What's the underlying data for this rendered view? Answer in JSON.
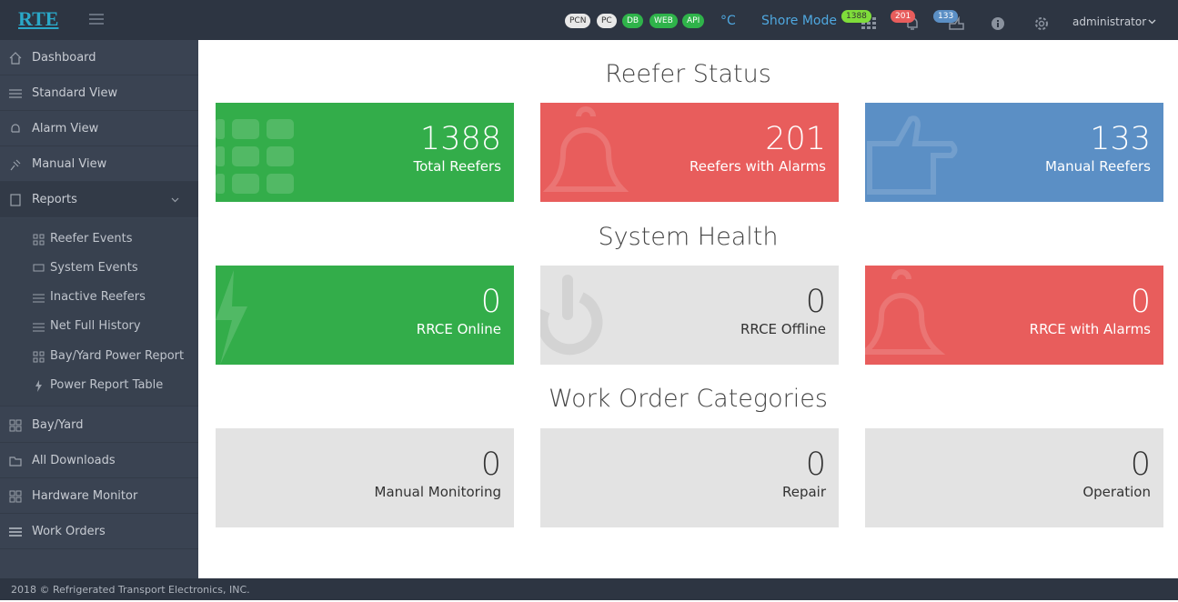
{
  "header": {
    "logo": "RTE",
    "status_pills": [
      "PCN",
      "PC",
      "DB",
      "WEB",
      "API"
    ],
    "unit": "°C",
    "mode": "Shore Mode",
    "badges": [
      1388,
      201,
      133
    ],
    "user": "administrator"
  },
  "sidebar": {
    "items_top": [
      "Dashboard",
      "Standard View",
      "Alarm View",
      "Manual View",
      "Reports"
    ],
    "submenu": [
      "Reefer Events",
      "System Events",
      "Inactive Reefers",
      "Net Full History",
      "Bay/Yard Power Report",
      "Power Report Table"
    ],
    "items_bottom": [
      "Bay/Yard",
      "All Downloads",
      "Hardware Monitor",
      "Work Orders"
    ]
  },
  "sections": [
    {
      "title": "Reefer Status",
      "cards": [
        {
          "value": 1388,
          "label": "Total Reefers"
        },
        {
          "value": 201,
          "label": "Reefers with Alarms"
        },
        {
          "value": 133,
          "label": "Manual Reefers"
        }
      ]
    },
    {
      "title": "System Health",
      "cards": [
        {
          "value": 0,
          "label": "RRCE Online"
        },
        {
          "value": 0,
          "label": "RRCE Offline"
        },
        {
          "value": 0,
          "label": "RRCE with Alarms"
        }
      ]
    },
    {
      "title": "Work Order Categories",
      "cards": [
        {
          "value": 0,
          "label": "Manual Monitoring"
        },
        {
          "value": 0,
          "label": "Repair"
        },
        {
          "value": 0,
          "label": "Operation"
        }
      ]
    }
  ],
  "footer": "2018 © Refrigerated Transport Electronics, INC."
}
